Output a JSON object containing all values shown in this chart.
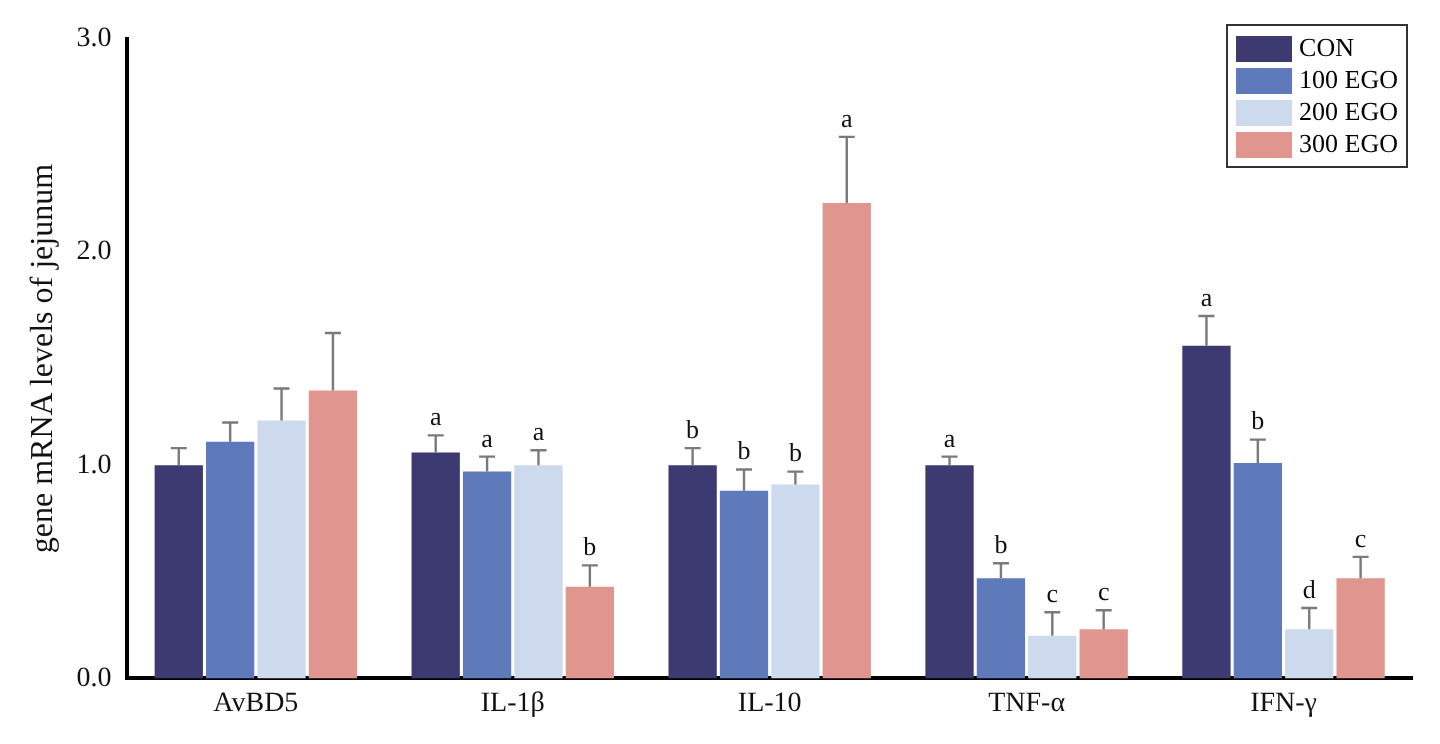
{
  "chart_data": {
    "type": "bar",
    "ylabel": "gene mRNA levels of jejunum",
    "categories": [
      "AvBD5",
      "IL-1β",
      "IL-10",
      "TNF-α",
      "IFN-γ"
    ],
    "ylim": [
      0,
      3
    ],
    "yticks": [
      {
        "value": 0,
        "label": "0.0"
      },
      {
        "value": 1,
        "label": "1.0"
      },
      {
        "value": 2,
        "label": "2.0"
      },
      {
        "value": 3,
        "label": "3.0"
      }
    ],
    "grid": false,
    "legend": "top right",
    "series": [
      {
        "name": "CON",
        "color": "#3d3a72",
        "values": [
          1.0,
          1.06,
          1.0,
          1.0,
          1.56
        ],
        "errors": [
          0.08,
          0.08,
          0.08,
          0.04,
          0.14
        ],
        "value_labels": [
          null,
          "a",
          "b",
          "a",
          "a"
        ]
      },
      {
        "name": "100 EGO",
        "color": "#5f7aba",
        "values": [
          1.11,
          0.97,
          0.88,
          0.47,
          1.01
        ],
        "errors": [
          0.09,
          0.07,
          0.1,
          0.07,
          0.11
        ],
        "value_labels": [
          null,
          "a",
          "b",
          "b",
          "b"
        ]
      },
      {
        "name": "200 EGO",
        "color": "#cdd9ec",
        "values": [
          1.21,
          1.0,
          0.91,
          0.2,
          0.23
        ],
        "errors": [
          0.15,
          0.07,
          0.06,
          0.11,
          0.1
        ],
        "value_labels": [
          null,
          "a",
          "b",
          "c",
          "d"
        ]
      },
      {
        "name": "300 EGO",
        "color": "#e0968e",
        "values": [
          1.35,
          0.43,
          2.23,
          0.23,
          0.47
        ],
        "errors": [
          0.27,
          0.1,
          0.31,
          0.09,
          0.1
        ],
        "value_labels": [
          null,
          "b",
          "a",
          "c",
          "c"
        ]
      }
    ]
  }
}
